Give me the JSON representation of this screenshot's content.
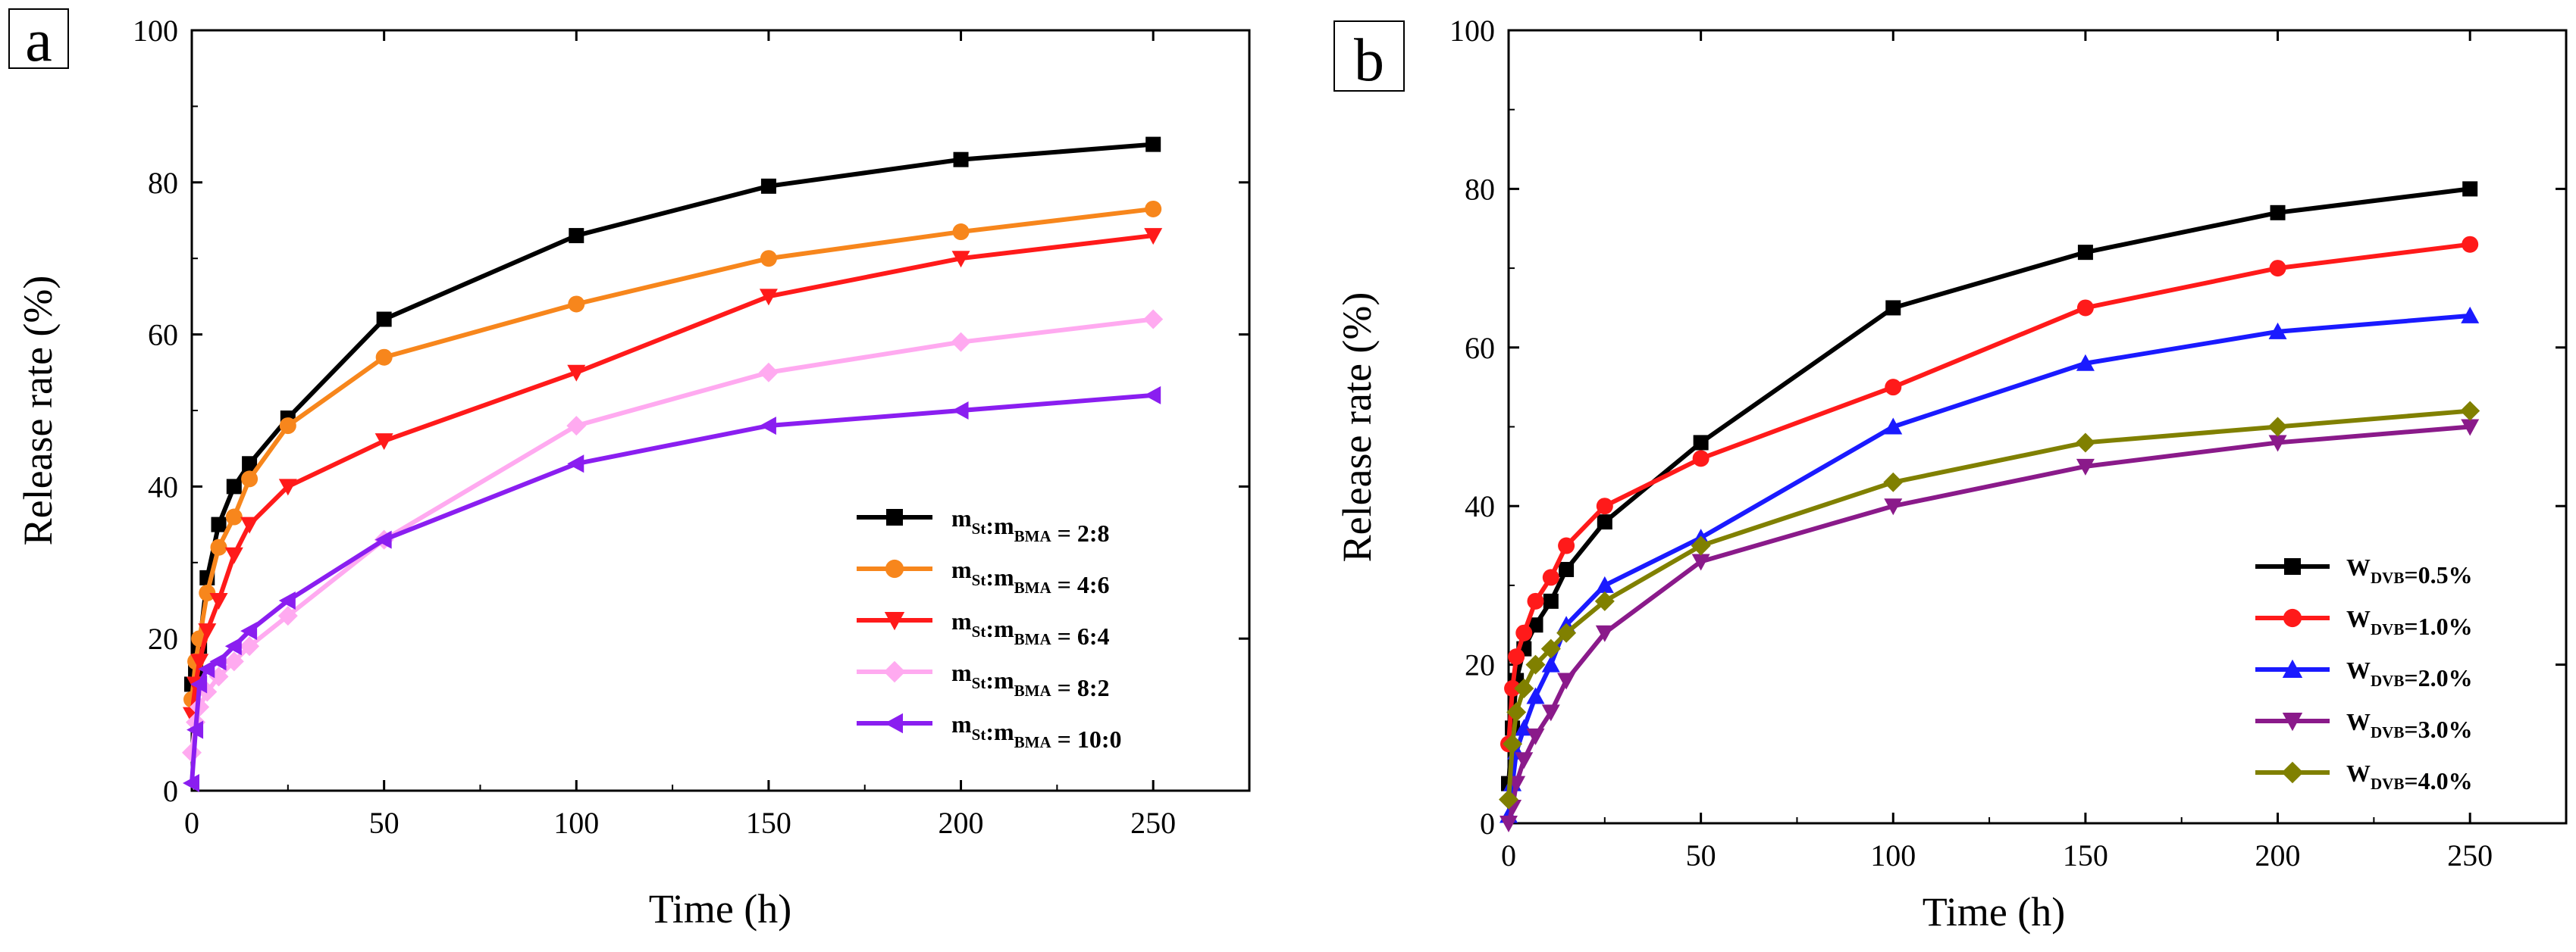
{
  "chart_data": [
    {
      "type": "line",
      "panel_label": "a",
      "xlabel": "Time (h)",
      "ylabel": "Release rate (%)",
      "xlim": [
        0,
        275
      ],
      "ylim": [
        0,
        100
      ],
      "xticks": [
        0,
        50,
        100,
        150,
        200,
        250
      ],
      "yticks": [
        0,
        20,
        40,
        60,
        80,
        100
      ],
      "legend_position": "bottom-right",
      "series": [
        {
          "name": "mSt:mBMA = 2:8",
          "legend": {
            "a": "m",
            "sa": "St",
            "b": ":m",
            "sb": "BMA",
            "c": " = 2:8"
          },
          "color": "#000000",
          "marker": "square",
          "x": [
            0,
            1,
            2,
            4,
            7,
            11,
            15,
            25,
            50,
            100,
            150,
            200,
            250
          ],
          "y": [
            14,
            16,
            19,
            28,
            35,
            40,
            43,
            49,
            62,
            73,
            79.5,
            83,
            85
          ]
        },
        {
          "name": "mSt:mBMA = 4:6",
          "legend": {
            "a": "m",
            "sa": "St",
            "b": ":m",
            "sb": "BMA",
            "c": " = 4:6"
          },
          "color": "#f7861c",
          "marker": "circle",
          "x": [
            0,
            1,
            2,
            4,
            7,
            11,
            15,
            25,
            50,
            100,
            150,
            200,
            250
          ],
          "y": [
            12,
            17,
            20,
            26,
            32,
            36,
            41,
            48,
            57,
            64,
            70,
            73.5,
            76.5
          ]
        },
        {
          "name": "mSt:mBMA = 6:4",
          "legend": {
            "a": "m",
            "sa": "St",
            "b": ":m",
            "sb": "BMA",
            "c": " = 6:4"
          },
          "color": "#ff1a1a",
          "marker": "triangle-down",
          "x": [
            0,
            1,
            2,
            4,
            7,
            11,
            15,
            25,
            50,
            100,
            150,
            200,
            250
          ],
          "y": [
            10,
            14,
            17,
            21,
            25,
            31,
            35,
            40,
            46,
            55,
            65,
            70,
            73
          ]
        },
        {
          "name": "mSt:mBMA = 8:2",
          "legend": {
            "a": "m",
            "sa": "St",
            "b": ":m",
            "sb": "BMA",
            "c": " = 8:2"
          },
          "color": "#ffaaf0",
          "marker": "diamond",
          "x": [
            0,
            1,
            2,
            4,
            7,
            11,
            15,
            25,
            50,
            100,
            150,
            200,
            250
          ],
          "y": [
            5,
            9,
            11,
            13,
            15,
            17,
            19,
            23,
            33,
            48,
            55,
            59,
            62
          ]
        },
        {
          "name": "mSt:mBMA = 10:0",
          "legend": {
            "a": "m",
            "sa": "St",
            "b": ":m",
            "sb": "BMA",
            "c": " = 10:0"
          },
          "color": "#8a1ef0",
          "marker": "triangle-left",
          "x": [
            0,
            1,
            2,
            4,
            7,
            11,
            15,
            25,
            50,
            100,
            150,
            200,
            250
          ],
          "y": [
            1,
            8,
            14,
            16,
            17,
            19,
            21,
            25,
            33,
            43,
            48,
            50,
            52
          ]
        }
      ]
    },
    {
      "type": "line",
      "panel_label": "b",
      "xlabel": "Time (h)",
      "ylabel": "Release rate (%)",
      "xlim": [
        0,
        275
      ],
      "ylim": [
        0,
        100
      ],
      "xticks": [
        0,
        50,
        100,
        150,
        200,
        250
      ],
      "yticks": [
        0,
        20,
        40,
        60,
        80,
        100
      ],
      "legend_position": "bottom-right",
      "series": [
        {
          "name": "WDVB=0.5%",
          "legend": {
            "a": "W",
            "sa": "DVB",
            "b": "=0.5%",
            "sb": "",
            "c": ""
          },
          "color": "#000000",
          "marker": "square",
          "x": [
            0,
            1,
            2,
            4,
            7,
            11,
            15,
            25,
            50,
            100,
            150,
            200,
            250
          ],
          "y": [
            5,
            12,
            18,
            22,
            25,
            28,
            32,
            38,
            48,
            65,
            72,
            77,
            80
          ]
        },
        {
          "name": "WDVB=1.0%",
          "legend": {
            "a": "W",
            "sa": "DVB",
            "b": "=1.0%",
            "sb": "",
            "c": ""
          },
          "color": "#ff1a1a",
          "marker": "circle",
          "x": [
            0,
            1,
            2,
            4,
            7,
            11,
            15,
            25,
            50,
            100,
            150,
            200,
            250
          ],
          "y": [
            10,
            17,
            21,
            24,
            28,
            31,
            35,
            40,
            46,
            55,
            65,
            70,
            73
          ]
        },
        {
          "name": "WDVB=2.0%",
          "legend": {
            "a": "W",
            "sa": "DVB",
            "b": "=2.0%",
            "sb": "",
            "c": ""
          },
          "color": "#1a1aff",
          "marker": "triangle-up",
          "x": [
            0,
            1,
            2,
            4,
            7,
            11,
            15,
            25,
            50,
            100,
            150,
            200,
            250
          ],
          "y": [
            1,
            5,
            9,
            12,
            16,
            20,
            25,
            30,
            36,
            50,
            58,
            62,
            64
          ]
        },
        {
          "name": "WDVB=3.0%",
          "legend": {
            "a": "W",
            "sa": "DVB",
            "b": "=3.0%",
            "sb": "",
            "c": ""
          },
          "color": "#8a1a8a",
          "marker": "triangle-down",
          "x": [
            0,
            1,
            2,
            4,
            7,
            11,
            15,
            25,
            50,
            100,
            150,
            200,
            250
          ],
          "y": [
            0,
            2,
            5,
            8,
            11,
            14,
            18,
            24,
            33,
            40,
            45,
            48,
            50
          ]
        },
        {
          "name": "WDVB=4.0%",
          "legend": {
            "a": "W",
            "sa": "DVB",
            "b": "=4.0%",
            "sb": "",
            "c": ""
          },
          "color": "#808000",
          "marker": "diamond",
          "x": [
            0,
            1,
            2,
            4,
            7,
            11,
            15,
            25,
            50,
            100,
            150,
            200,
            250
          ],
          "y": [
            3,
            10,
            14,
            17,
            20,
            22,
            24,
            28,
            35,
            43,
            48,
            50,
            52
          ]
        }
      ]
    }
  ]
}
